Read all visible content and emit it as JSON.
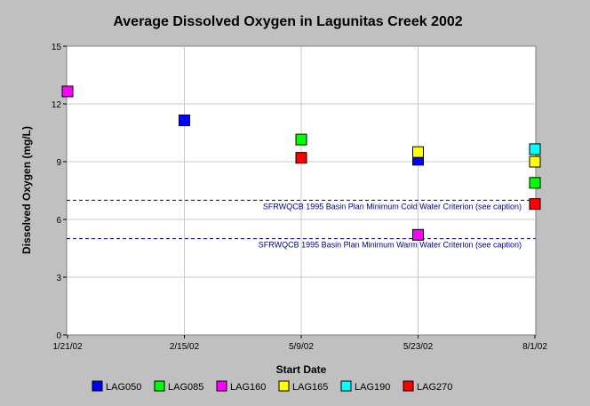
{
  "chart_data": {
    "type": "scatter",
    "title": "Average Dissolved Oxygen in Lagunitas Creek 2002",
    "xlabel": "Start Date",
    "ylabel": "Dissolved Oxygen (mg/L)",
    "ylim": [
      0,
      15
    ],
    "yticks": [
      0,
      3,
      6,
      9,
      12,
      15
    ],
    "categories": [
      "1/21/02",
      "2/15/02",
      "5/9/02",
      "5/23/02",
      "8/1/02"
    ],
    "grid": true,
    "legend_position": "bottom",
    "reference_lines": [
      {
        "value": 7,
        "label": "SFRWQCB 1995 Basin Plan Minimum Cold Water Criterion (see caption)",
        "color": "#00008b"
      },
      {
        "value": 5,
        "label": "SFRWQCB 1995 Basin Plan Minimum Warm Water Criterion (see caption)",
        "color": "#00008b"
      }
    ],
    "series": [
      {
        "name": "LAG050",
        "color": "#0000ff",
        "points": [
          {
            "x": "2/15/02",
            "y": 11.15
          },
          {
            "x": "5/23/02",
            "y": 9.1
          }
        ]
      },
      {
        "name": "LAG085",
        "color": "#00ff00",
        "points": [
          {
            "x": "5/9/02",
            "y": 10.15
          },
          {
            "x": "8/1/02",
            "y": 7.9
          }
        ]
      },
      {
        "name": "LAG160",
        "color": "#ff00ff",
        "points": [
          {
            "x": "1/21/02",
            "y": 12.65
          },
          {
            "x": "5/23/02",
            "y": 5.2
          }
        ]
      },
      {
        "name": "LAG165",
        "color": "#ffff00",
        "points": [
          {
            "x": "5/23/02",
            "y": 9.5
          },
          {
            "x": "8/1/02",
            "y": 9.0
          }
        ]
      },
      {
        "name": "LAG190",
        "color": "#00ffff",
        "points": [
          {
            "x": "8/1/02",
            "y": 9.65
          }
        ]
      },
      {
        "name": "LAG270",
        "color": "#ff0000",
        "points": [
          {
            "x": "5/9/02",
            "y": 9.2
          },
          {
            "x": "8/1/02",
            "y": 6.8
          }
        ]
      }
    ]
  }
}
